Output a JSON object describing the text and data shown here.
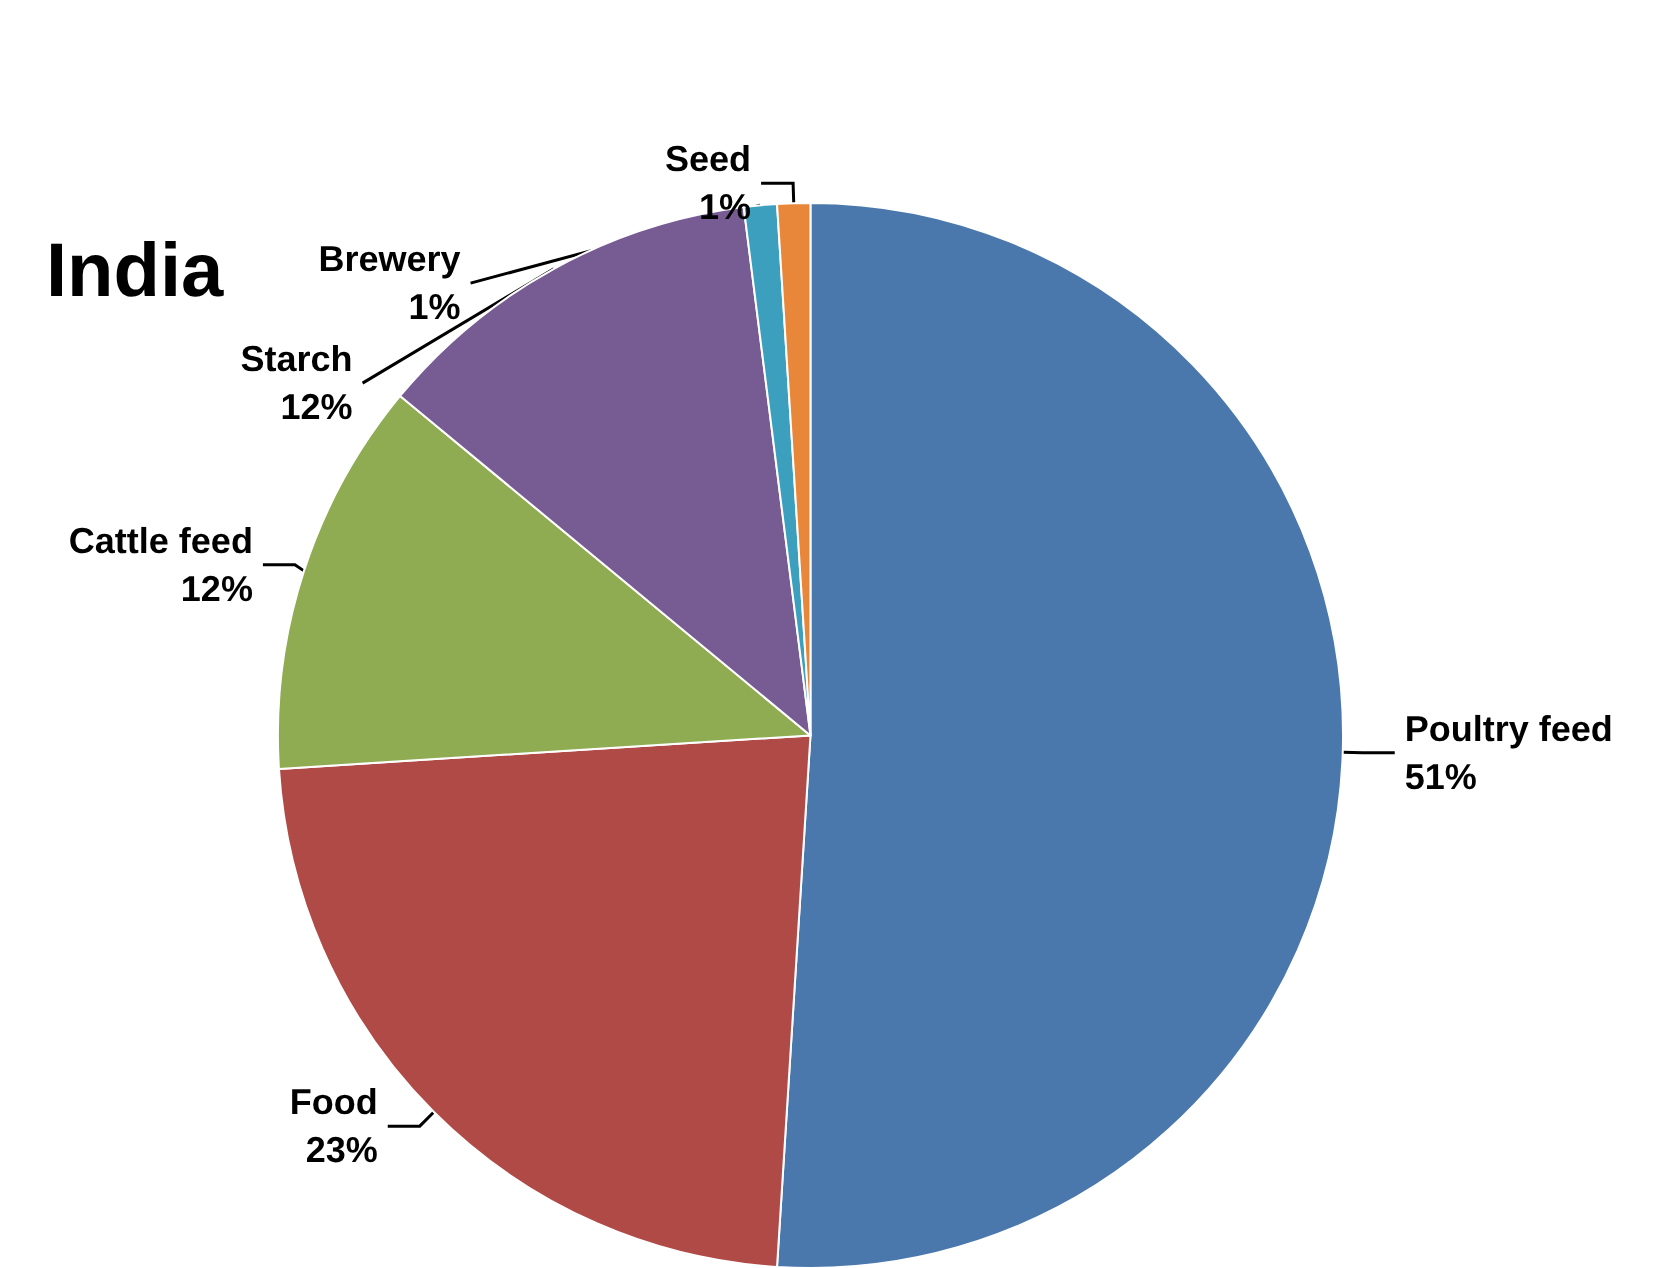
{
  "chart_data": {
    "type": "pie",
    "title": "India",
    "categories": [
      "Poultry feed",
      "Food",
      "Cattle feed",
      "Starch",
      "Brewery",
      "Seed"
    ],
    "values": [
      51,
      23,
      12,
      12,
      1,
      1
    ],
    "value_labels": [
      "51%",
      "23%",
      "12%",
      "12%",
      "1%",
      "1%"
    ],
    "colors": [
      "#4a78ad",
      "#b04a47",
      "#8fac52",
      "#775b93",
      "#3c9fbd",
      "#e8873a"
    ],
    "legend": false
  }
}
